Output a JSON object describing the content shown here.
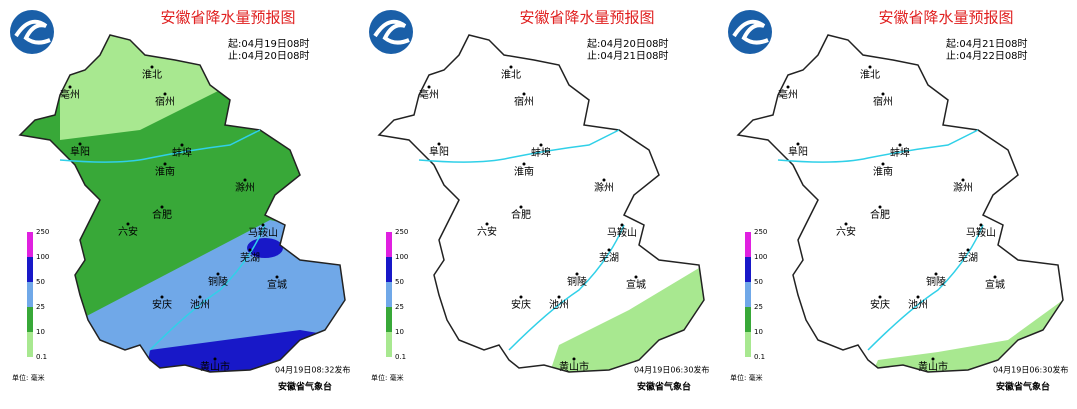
{
  "panels": [
    {
      "title": "安徽省降水量预报图",
      "start": "起:04月19日08时",
      "end": "止:04月20日08时",
      "issued": "04月19日08:32发布"
    },
    {
      "title": "安徽省降水量预报图",
      "start": "起:04月20日08时",
      "end": "止:04月21日08时",
      "issued": "04月19日06:30发布"
    },
    {
      "title": "安徽省降水量预报图",
      "start": "起:04月21日08时",
      "end": "止:04月22日08时",
      "issued": "04月19日06:30发布"
    }
  ],
  "cities": [
    "淮北",
    "宿州",
    "亳州",
    "阜阳",
    "蚌埠",
    "淮南",
    "滁州",
    "合肥",
    "六安",
    "马鞍山",
    "芜湖",
    "铜陵",
    "宣城",
    "安庆",
    "池州",
    "黄山市"
  ],
  "legend": {
    "labels": [
      "250",
      "100",
      "50",
      "25",
      "10",
      "0.1"
    ],
    "unit": "单位: 毫米"
  },
  "issuer": "安徽省气象台"
}
